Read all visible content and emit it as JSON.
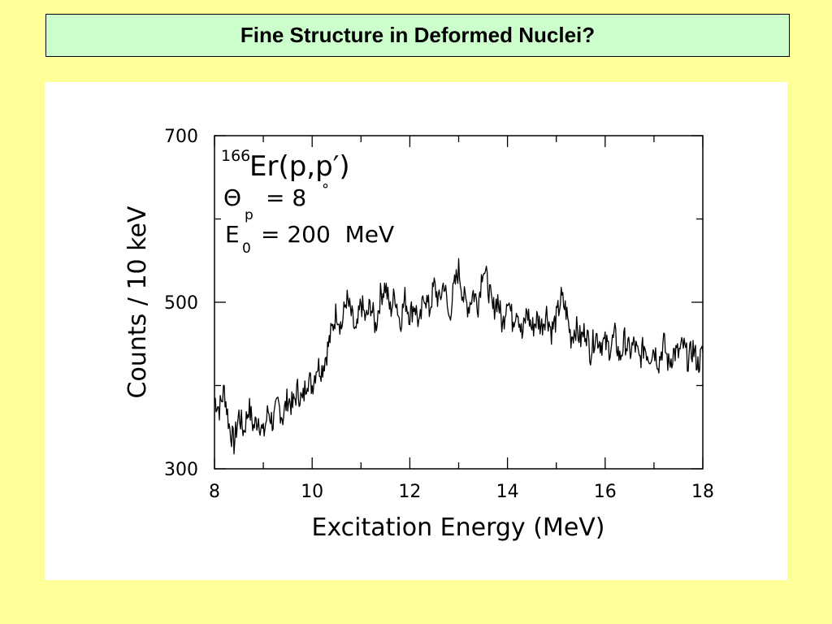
{
  "slide": {
    "title": "Fine Structure in Deformed Nuclei?"
  },
  "colors": {
    "background": "#ffff99",
    "title_box": "#ccffcc",
    "panel": "#ffffff",
    "trace": "#000000"
  },
  "chart_data": {
    "type": "line",
    "title": "",
    "xlabel": "Excitation Energy (MeV)",
    "ylabel": "Counts / 10 keV",
    "xlim": [
      8,
      18
    ],
    "ylim": [
      300,
      700
    ],
    "xticks": [
      8,
      10,
      12,
      14,
      16,
      18
    ],
    "yticks": [
      300,
      500,
      700
    ],
    "grid": false,
    "annotation": {
      "mass_number": "166",
      "reaction": "Er(p,p′)",
      "theta_symbol": "Θ",
      "theta_sub": "p",
      "theta_value": "= 8",
      "degree": "°",
      "energy_symbol": "E",
      "energy_sub": "0",
      "energy_value": "= 200  MeV"
    },
    "series": [
      {
        "x": [
          8.0,
          8.1,
          8.2,
          8.3,
          8.4,
          8.5,
          8.6,
          8.7,
          8.8,
          8.9,
          9.0,
          9.1,
          9.2,
          9.3,
          9.4,
          9.5,
          9.6,
          9.7,
          9.8,
          9.9,
          10.0,
          10.1,
          10.2,
          10.3,
          10.4,
          10.5,
          10.6,
          10.7,
          10.8,
          10.9,
          11.0,
          11.1,
          11.2,
          11.3,
          11.4,
          11.5,
          11.6,
          11.7,
          11.8,
          11.9,
          12.0,
          12.1,
          12.2,
          12.3,
          12.4,
          12.5,
          12.6,
          12.7,
          12.8,
          12.9,
          13.0,
          13.1,
          13.2,
          13.3,
          13.4,
          13.5,
          13.6,
          13.7,
          13.8,
          13.9,
          14.0,
          14.1,
          14.2,
          14.3,
          14.4,
          14.5,
          14.6,
          14.7,
          14.8,
          14.9,
          15.0,
          15.1,
          15.2,
          15.3,
          15.4,
          15.5,
          15.6,
          15.7,
          15.8,
          15.9,
          16.0,
          16.1,
          16.2,
          16.3,
          16.4,
          16.5,
          16.6,
          16.7,
          16.8,
          16.9,
          17.0,
          17.1,
          17.2,
          17.3,
          17.4,
          17.5,
          17.6,
          17.7,
          17.8,
          17.9,
          18.0
        ],
        "y": [
          385,
          372,
          395,
          352,
          330,
          365,
          345,
          375,
          350,
          362,
          340,
          370,
          355,
          378,
          362,
          385,
          375,
          395,
          380,
          410,
          400,
          425,
          420,
          440,
          465,
          490,
          470,
          505,
          485,
          460,
          500,
          478,
          498,
          470,
          508,
          520,
          490,
          510,
          475,
          505,
          485,
          498,
          470,
          512,
          490,
          520,
          500,
          525,
          480,
          515,
          540,
          505,
          495,
          512,
          498,
          545,
          520,
          490,
          505,
          470,
          510,
          478,
          495,
          458,
          490,
          468,
          480,
          472,
          488,
          465,
          480,
          505,
          490,
          458,
          470,
          455,
          468,
          440,
          462,
          452,
          450,
          445,
          460,
          432,
          455,
          440,
          450,
          430,
          448,
          435,
          445,
          428,
          452,
          425,
          440,
          438,
          448,
          430,
          445,
          425,
          440
        ]
      }
    ]
  }
}
